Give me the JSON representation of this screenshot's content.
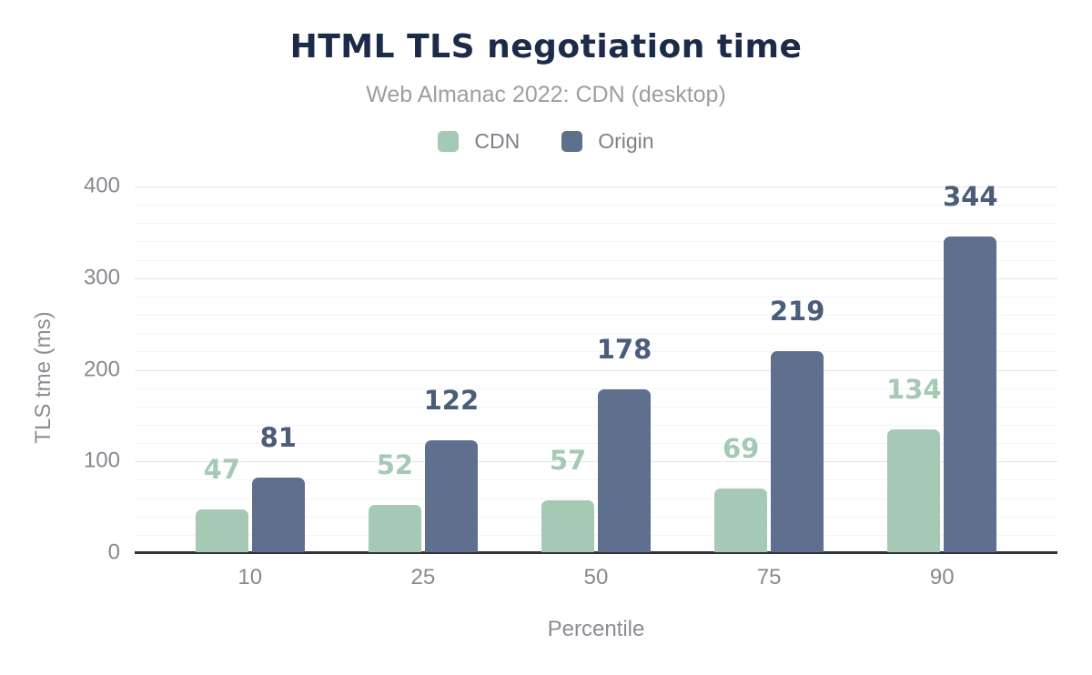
{
  "header": {
    "title": "HTML TLS negotiation time",
    "subtitle": "Web Almanac 2022: CDN (desktop)"
  },
  "colors": {
    "title": "#1c2b49",
    "subtitle": "#9b9ea4",
    "tick_text": "#86898f",
    "axis_title_text": "#8a8d93",
    "major_gridline": "#e3e4e8",
    "minor_gridline": "#f3f4f6",
    "baseline": "#2f343a",
    "cdn_green": "#a5c9b5",
    "origin_slate": "#5e708e",
    "origin_label": "#4c5c7b"
  },
  "chart_data": {
    "type": "bar",
    "title": "HTML TLS negotiation time",
    "subtitle": "Web Almanac 2022: CDN (desktop)",
    "categories": [
      "10",
      "25",
      "50",
      "75",
      "90"
    ],
    "series": [
      {
        "name": "CDN",
        "color": "#a5c9b5",
        "label_color": "#a5c9b5",
        "values": [
          47,
          52,
          57,
          69,
          134
        ]
      },
      {
        "name": "Origin",
        "color": "#5e708e",
        "label_color": "#4c5c7b",
        "values": [
          81,
          122,
          178,
          219,
          344
        ]
      }
    ],
    "xlabel": "Percentile",
    "ylabel": "TLS tme (ms)",
    "ylim": [
      0,
      400
    ],
    "yticks": [
      0,
      100,
      200,
      300,
      400
    ],
    "minor_grid_step": 20,
    "grid": true,
    "data_labels": true,
    "legend_position": "top"
  }
}
